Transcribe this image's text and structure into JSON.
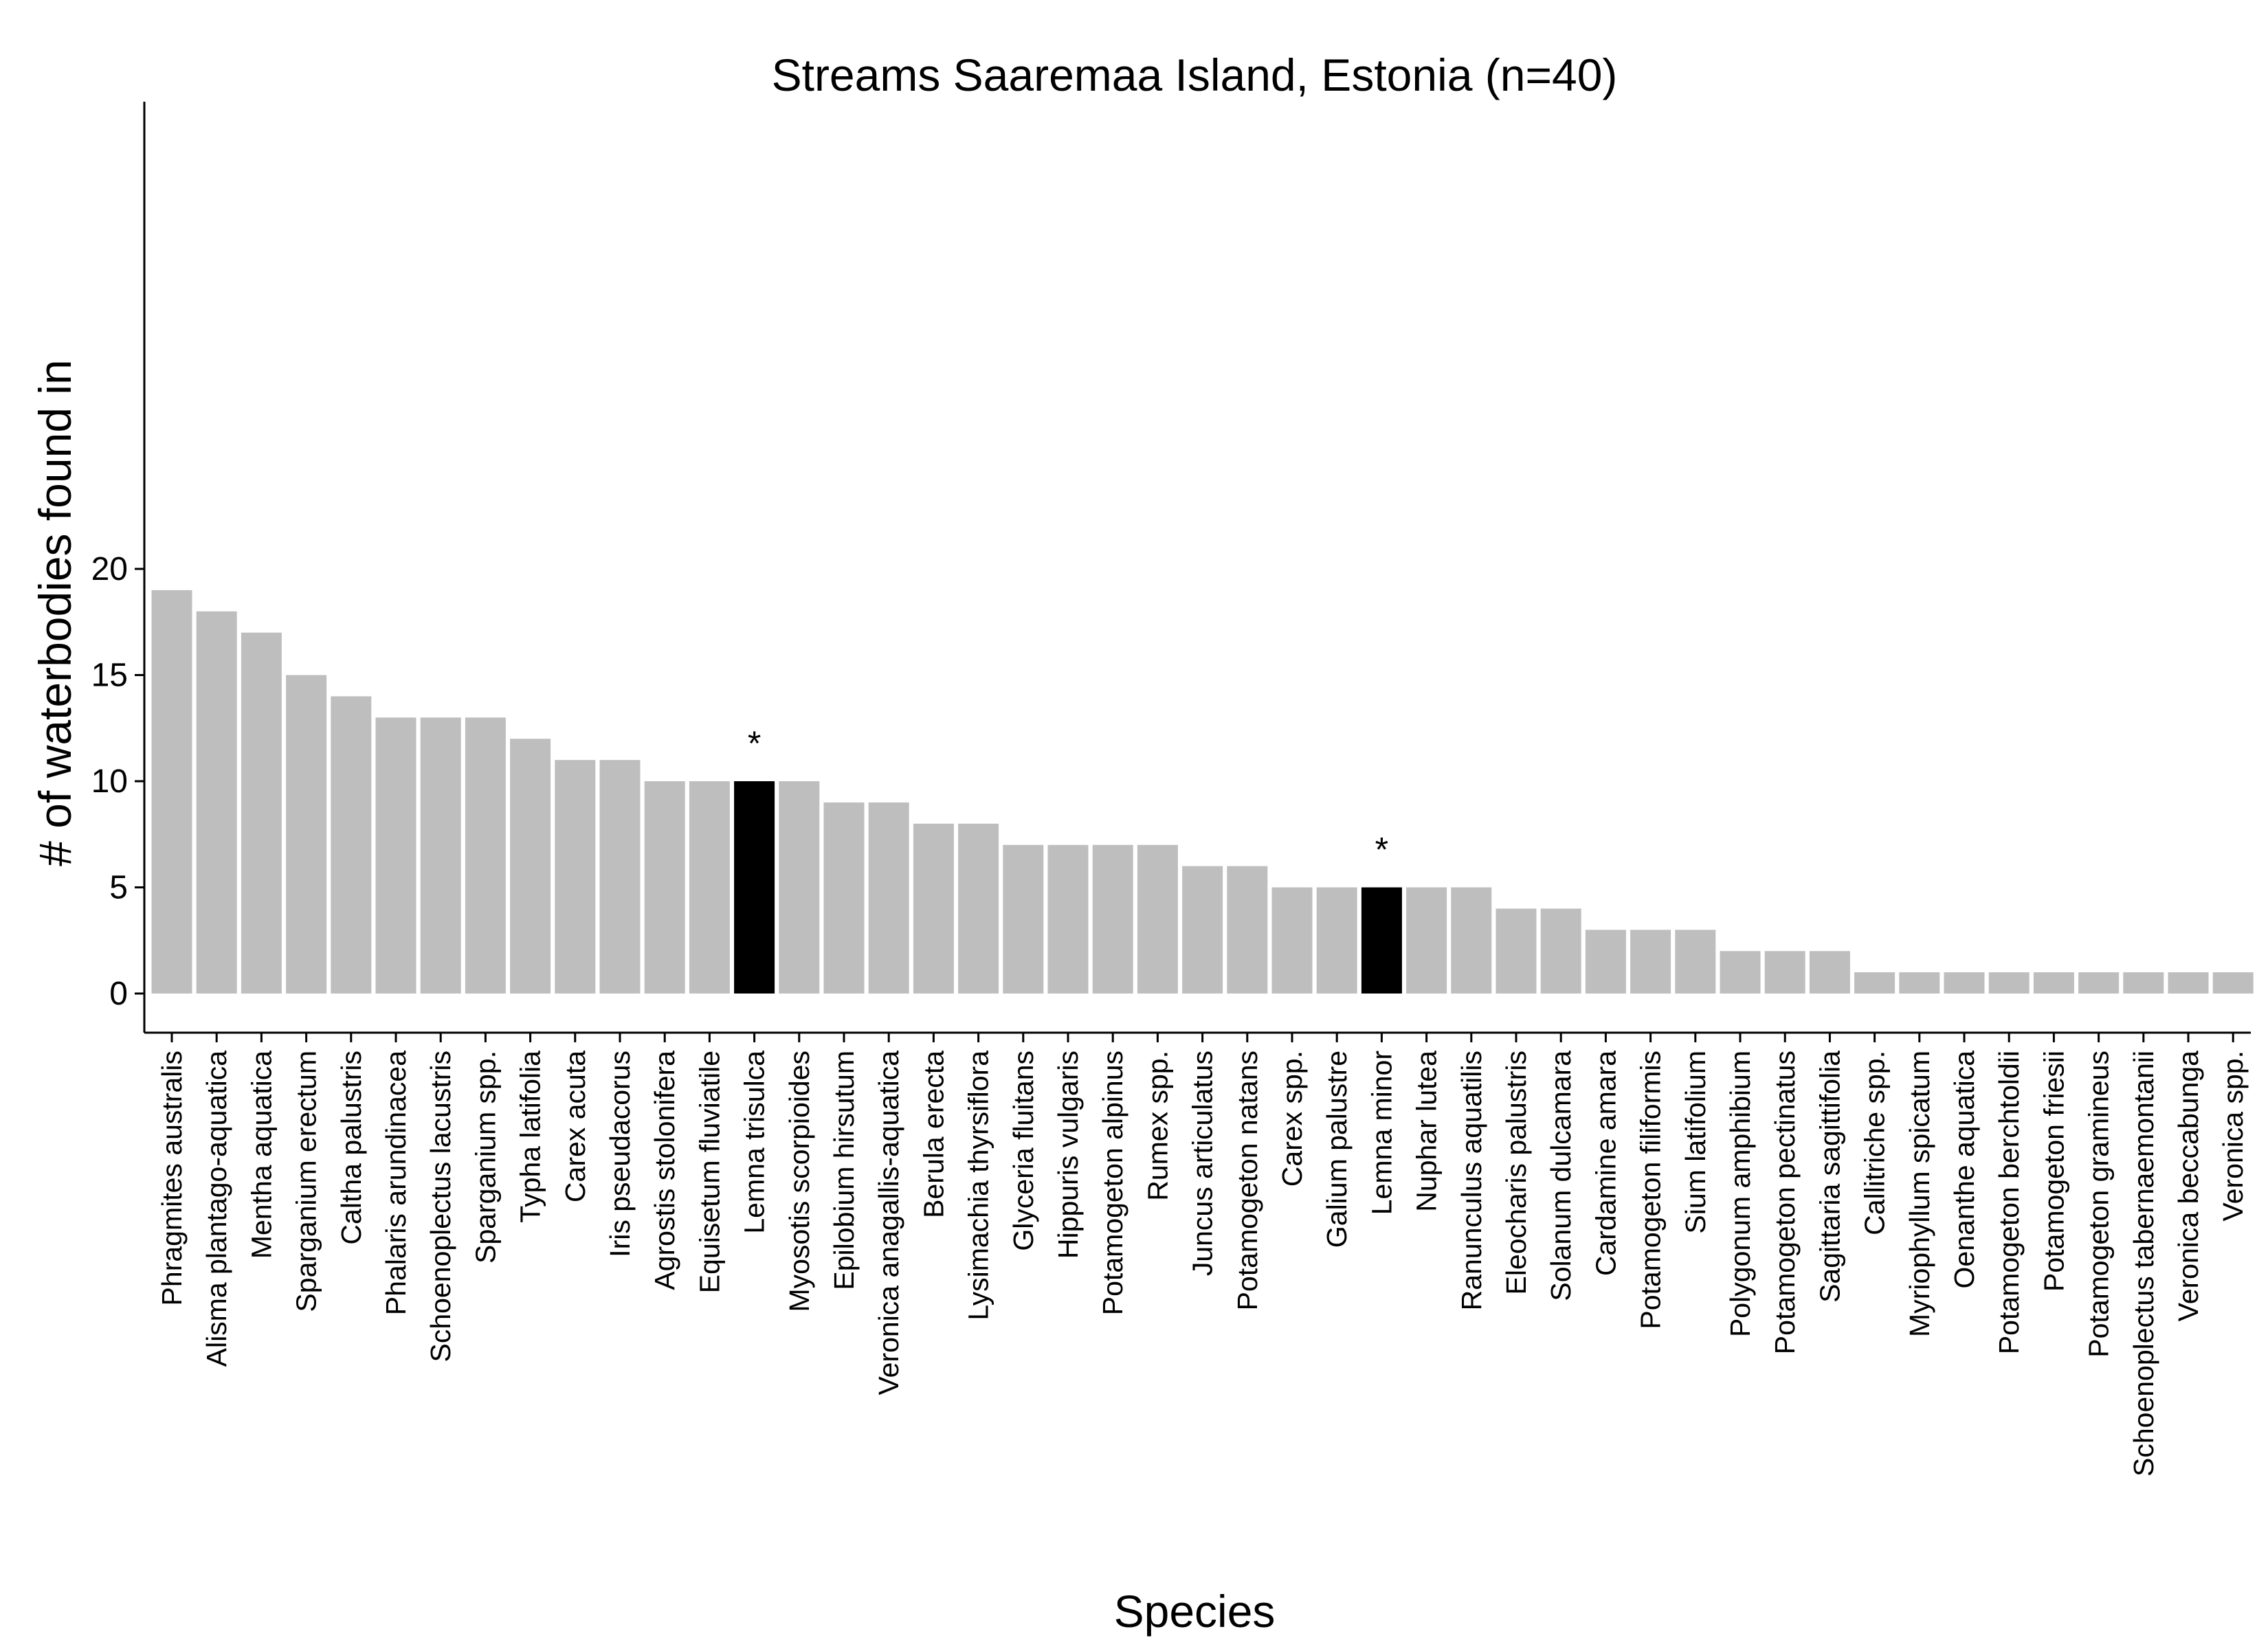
{
  "chart_data": {
    "type": "bar",
    "title": "Streams Saaremaa Island, Estonia (n=40)",
    "xlabel": "Species",
    "ylabel": "# of waterbodies found in",
    "ylim": [
      0,
      21
    ],
    "yticks": [
      0,
      5,
      10,
      15,
      20
    ],
    "grid": false,
    "legend": "none",
    "colors": {
      "default_bar": "#bebebe",
      "highlight_bar": "#000000",
      "axis": "#000000"
    },
    "categories": [
      "Phragmites australis",
      "Alisma plantago-aquatica",
      "Mentha aquatica",
      "Sparganium erectum",
      "Caltha palustris",
      "Phalaris arundinacea",
      "Schoenoplectus lacustris",
      "Sparganium spp.",
      "Typha latifolia",
      "Carex acuta",
      "Iris pseudacorus",
      "Agrostis stolonifera",
      "Equisetum fluviatile",
      "Lemna trisulca",
      "Myosotis scorpioides",
      "Epilobium hirsutum",
      "Veronica anagallis-aquatica",
      "Berula erecta",
      "Lysimachia thyrsiflora",
      "Glyceria fluitans",
      "Hippuris vulgaris",
      "Potamogeton alpinus",
      "Rumex spp.",
      "Juncus articulatus",
      "Potamogeton natans",
      "Carex spp.",
      "Galium palustre",
      "Lemna minor",
      "Nuphar lutea",
      "Ranunculus aquatilis",
      "Eleocharis palustris",
      "Solanum dulcamara",
      "Cardamine amara",
      "Potamogeton filiformis",
      "Sium latifolium",
      "Polygonum amphibium",
      "Potamogeton pectinatus",
      "Sagittaria sagittifolia",
      "Callitriche spp.",
      "Myriophyllum spicatum",
      "Oenanthe aquatica",
      "Potamogeton berchtoldii",
      "Potamogeton friesii",
      "Potamogeton gramineus",
      "Schoenoplectus tabernaemontanii",
      "Veronica beccabunga",
      "Veronica spp."
    ],
    "values": [
      19,
      18,
      17,
      15,
      14,
      13,
      13,
      13,
      12,
      11,
      11,
      10,
      10,
      10,
      10,
      9,
      9,
      8,
      8,
      7,
      7,
      7,
      7,
      6,
      6,
      5,
      5,
      5,
      5,
      5,
      4,
      4,
      3,
      3,
      3,
      2,
      2,
      2,
      1,
      1,
      1,
      1,
      1,
      1,
      1,
      1,
      1
    ],
    "highlighted": [
      "Lemna trisulca",
      "Lemna minor"
    ],
    "annotations": [
      {
        "category": "Lemna trisulca",
        "text": "*"
      },
      {
        "category": "Lemna minor",
        "text": "*"
      }
    ]
  }
}
